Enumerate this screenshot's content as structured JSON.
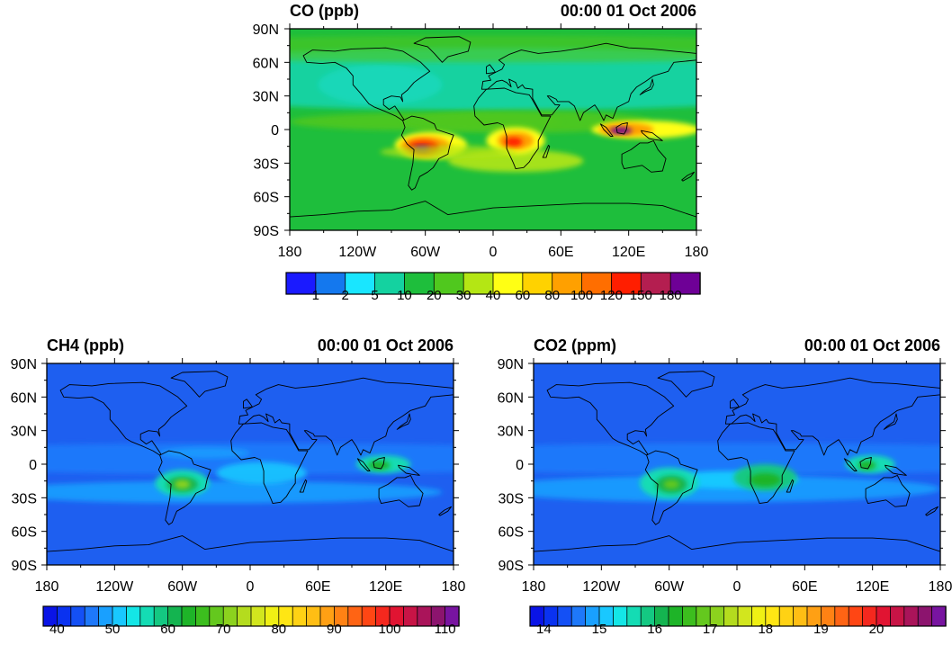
{
  "panels": [
    {
      "id": "co",
      "title": "CO (ppb)",
      "datetime": "00:00 01 Oct 2006",
      "lat_labels": [
        "90N",
        "60N",
        "30N",
        "0",
        "30S",
        "60S",
        "90S"
      ],
      "lon_labels": [
        "180",
        "120W",
        "60W",
        "0",
        "60E",
        "120E",
        "180"
      ],
      "colorbar": {
        "labels": [
          "1",
          "2",
          "5",
          "10",
          "20",
          "30",
          "40",
          "60",
          "80",
          "100",
          "120",
          "150",
          "180"
        ],
        "colors": [
          "#1a1aff",
          "#1478ee",
          "#19e6ff",
          "#14d2a0",
          "#1ebe3c",
          "#50c81e",
          "#b4e614",
          "#ffff14",
          "#ffd200",
          "#ffa000",
          "#ff6e00",
          "#ff1e00",
          "#b41e50",
          "#6e0096"
        ]
      }
    },
    {
      "id": "ch4",
      "title": "CH4 (ppb)",
      "datetime": "00:00 01 Oct 2006",
      "lat_labels": [
        "90N",
        "60N",
        "30N",
        "0",
        "30S",
        "60S",
        "90S"
      ],
      "lon_labels": [
        "180",
        "120W",
        "60W",
        "0",
        "60E",
        "120E",
        "180"
      ],
      "colorbar": {
        "labels": [
          "40",
          "50",
          "60",
          "70",
          "80",
          "90",
          "100",
          "110"
        ],
        "colors": [
          "#0a14e6",
          "#0a32f0",
          "#1450f5",
          "#1e78fa",
          "#19a0ff",
          "#19c8ff",
          "#14e6e6",
          "#14dcb4",
          "#14c882",
          "#14b450",
          "#1eb428",
          "#3cbe1e",
          "#64c81e",
          "#8cd21e",
          "#b4dc1e",
          "#d2e61e",
          "#f0f014",
          "#ffe614",
          "#ffd214",
          "#ffbe14",
          "#ffa014",
          "#ff8214",
          "#ff6414",
          "#ff4614",
          "#f5281e",
          "#e11432",
          "#c81446",
          "#aa145a",
          "#8c146e",
          "#7814a0"
        ]
      }
    },
    {
      "id": "co2",
      "title": "CO2 (ppm)",
      "datetime": "00:00 01 Oct 2006",
      "lat_labels": [
        "90N",
        "60N",
        "30N",
        "0",
        "30S",
        "60S",
        "90S"
      ],
      "lon_labels": [
        "180",
        "120W",
        "60W",
        "0",
        "60E",
        "120E",
        "180"
      ],
      "colorbar": {
        "labels": [
          "14",
          "15",
          "16",
          "17",
          "18",
          "19",
          "20"
        ],
        "colors": [
          "#0a14e6",
          "#0a32f0",
          "#1450f5",
          "#1e78fa",
          "#19a0ff",
          "#19c8ff",
          "#14e6e6",
          "#14dcb4",
          "#14c882",
          "#14b450",
          "#1eb428",
          "#3cbe1e",
          "#64c81e",
          "#8cd21e",
          "#b4dc1e",
          "#d2e61e",
          "#f0f014",
          "#ffe614",
          "#ffd214",
          "#ffbe14",
          "#ffa014",
          "#ff8214",
          "#ff6414",
          "#ff4614",
          "#f5281e",
          "#e11432",
          "#c81446",
          "#aa145a",
          "#8c146e",
          "#7814a0"
        ]
      }
    }
  ]
}
